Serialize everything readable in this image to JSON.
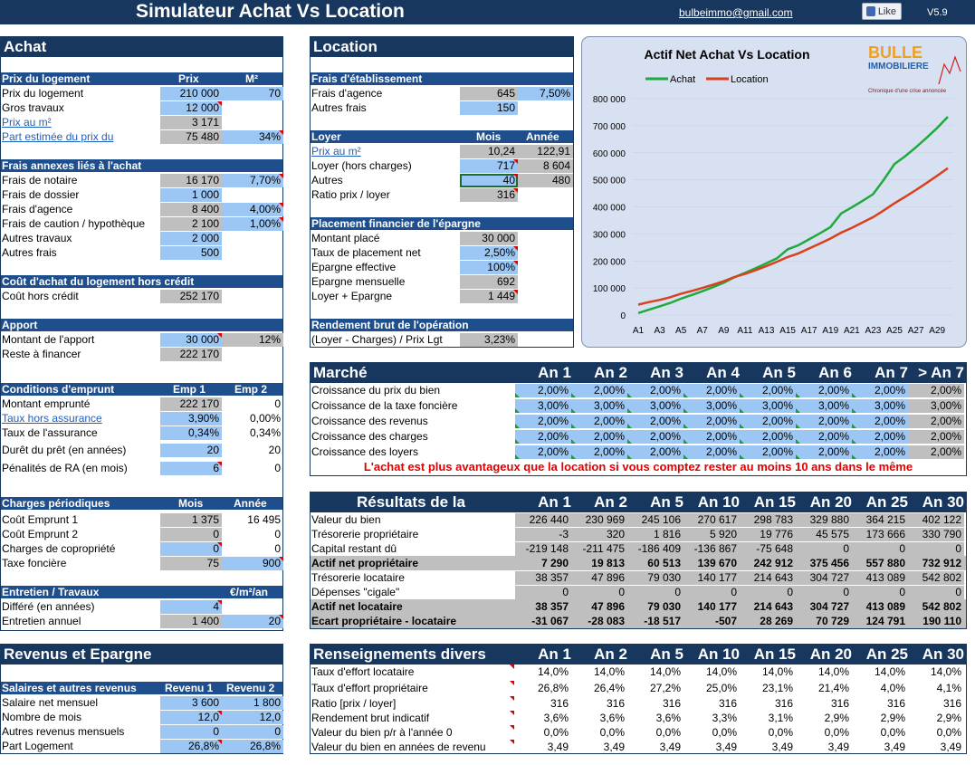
{
  "header": {
    "title": "Simulateur Achat Vs Location",
    "email": "bulbeimmo@gmail.com",
    "like": "Like",
    "version": "V5.9"
  },
  "achat": {
    "title": "Achat",
    "prix": {
      "h1": "Prix du logement",
      "h2": "Prix",
      "h3": "M²",
      "rows": [
        {
          "label": "Prix du logement",
          "v1": "210 000",
          "v2": "70"
        },
        {
          "label": "Gros travaux",
          "v1": "12 000",
          "v2": ""
        },
        {
          "label": "Prix au m²",
          "v1": "3 171",
          "v2": ""
        },
        {
          "label": "Part estimée du prix du",
          "v1": "75 480",
          "v2": "34%"
        }
      ]
    },
    "frais": {
      "h1": "Frais annexes liés à l'achat",
      "rows": [
        {
          "label": "Frais de notaire",
          "v1": "16 170",
          "v2": "7,70%"
        },
        {
          "label": "Frais de dossier",
          "v1": "1 000",
          "v2": ""
        },
        {
          "label": "Frais d'agence",
          "v1": "8 400",
          "v2": "4,00%"
        },
        {
          "label": "Frais de caution / hypothèque",
          "v1": "2 100",
          "v2": "1,00%"
        },
        {
          "label": "Autres travaux",
          "v1": "2 000",
          "v2": ""
        },
        {
          "label": "Autres frais",
          "v1": "500",
          "v2": ""
        }
      ]
    },
    "cout": {
      "h1": "Coût d'achat du logement hors crédit",
      "label": "Coût hors crédit",
      "v1": "252 170"
    },
    "apport": {
      "h1": "Apport",
      "rows": [
        {
          "label": "Montant de l'apport",
          "v1": "30 000",
          "v2": "12%"
        },
        {
          "label": "Reste à financer",
          "v1": "222 170",
          "v2": ""
        }
      ]
    },
    "emprunt": {
      "h1": "Conditions d'emprunt",
      "h2": "Emp 1",
      "h3": "Emp 2",
      "rows": [
        {
          "label": "Montant emprunté",
          "v1": "222 170",
          "v2": "0"
        },
        {
          "label": "Taux hors assurance",
          "v1": "3,90%",
          "v2": "0,00%"
        },
        {
          "label": "Taux de l'assurance",
          "v1": "0,34%",
          "v2": "0,34%"
        },
        {
          "label": "Durêt du prêt (en années)",
          "v1": "20",
          "v2": "20"
        },
        {
          "label": "Pénalités de RA (en mois)",
          "v1": "6",
          "v2": "0"
        }
      ]
    },
    "charges": {
      "h1": "Charges périodiques",
      "h2": "Mois",
      "h3": "Année",
      "rows": [
        {
          "label": "Coût Emprunt 1",
          "v1": "1 375",
          "v2": "16 495"
        },
        {
          "label": "Coût Emprunt 2",
          "v1": "0",
          "v2": "0"
        },
        {
          "label": "Charges de copropriété",
          "v1": "0",
          "v2": "0"
        },
        {
          "label": "Taxe foncière",
          "v1": "75",
          "v2": "900"
        }
      ]
    },
    "entretien": {
      "h1": "Entretien / Travaux",
      "h3": "€/m²/an",
      "rows": [
        {
          "label": "Différé (en années)",
          "v1": "4",
          "v2": ""
        },
        {
          "label": "Entretien annuel",
          "v1": "1 400",
          "v2": "20"
        }
      ]
    }
  },
  "revenus": {
    "title": "Revenus et Epargne",
    "h1": "Salaires et autres revenus",
    "h2": "Revenu 1",
    "h3": "Revenu 2",
    "rows": [
      {
        "label": "Salaire net mensuel",
        "v1": "3 600",
        "v2": "1 800"
      },
      {
        "label": "Nombre de mois",
        "v1": "12,0",
        "v2": "12,0"
      },
      {
        "label": "Autres revenus mensuels",
        "v1": "0",
        "v2": "0"
      },
      {
        "label": "Part Logement",
        "v1": "26,8%",
        "v2": "26,8%"
      }
    ]
  },
  "location": {
    "title": "Location",
    "etab": {
      "h1": "Frais d'établissement",
      "rows": [
        {
          "label": "Frais d'agence",
          "v1": "645",
          "v2": "7,50%"
        },
        {
          "label": "Autres frais",
          "v1": "150",
          "v2": ""
        }
      ]
    },
    "loyer": {
      "h1": "Loyer",
      "h2": "Mois",
      "h3": "Année",
      "rows": [
        {
          "label": "Prix au m²",
          "v1": "10,24",
          "v2": "122,91"
        },
        {
          "label": "Loyer (hors charges)",
          "v1": "717",
          "v2": "8 604"
        },
        {
          "label": "Autres",
          "v1": "40",
          "v2": "480"
        },
        {
          "label": "Ratio prix / loyer",
          "v1": "316",
          "v2": ""
        }
      ]
    },
    "placement": {
      "h1": "Placement financier de l'épargne",
      "rows": [
        {
          "label": "Montant placé",
          "v1": "30 000"
        },
        {
          "label": "Taux de placement net",
          "v1": "2,50%"
        },
        {
          "label": "Epargne effective",
          "v1": "100%"
        },
        {
          "label": "Epargne mensuelle",
          "v1": "692"
        },
        {
          "label": "Loyer + Epargne",
          "v1": "1 449"
        }
      ]
    },
    "rendement": {
      "h1": "Rendement brut de l'opération",
      "label": "(Loyer - Charges) / Prix Lgt",
      "v1": "3,23%"
    }
  },
  "marche": {
    "title": "Marché",
    "cols": [
      "An 1",
      "An 2",
      "An 3",
      "An 4",
      "An 5",
      "An 6",
      "An 7",
      "> An 7"
    ],
    "rows": [
      {
        "label": "Croissance du prix du bien",
        "vals": [
          "2,00%",
          "2,00%",
          "2,00%",
          "2,00%",
          "2,00%",
          "2,00%",
          "2,00%",
          "2,00%"
        ]
      },
      {
        "label": "Croissance de la taxe foncière",
        "vals": [
          "3,00%",
          "3,00%",
          "3,00%",
          "3,00%",
          "3,00%",
          "3,00%",
          "3,00%",
          "3,00%"
        ]
      },
      {
        "label": "Croissance des revenus",
        "vals": [
          "2,00%",
          "2,00%",
          "2,00%",
          "2,00%",
          "2,00%",
          "2,00%",
          "2,00%",
          "2,00%"
        ]
      },
      {
        "label": "Croissance des charges",
        "vals": [
          "2,00%",
          "2,00%",
          "2,00%",
          "2,00%",
          "2,00%",
          "2,00%",
          "2,00%",
          "2,00%"
        ]
      },
      {
        "label": "Croissance des loyers",
        "vals": [
          "2,00%",
          "2,00%",
          "2,00%",
          "2,00%",
          "2,00%",
          "2,00%",
          "2,00%",
          "2,00%"
        ]
      }
    ],
    "message": "L'achat est plus avantageux que la location si vous comptez rester au moins 10 ans dans le même"
  },
  "resultats": {
    "title": "Résultats de la",
    "cols": [
      "An 1",
      "An 2",
      "An 5",
      "An 10",
      "An 15",
      "An 20",
      "An 25",
      "An 30"
    ],
    "rows": [
      {
        "label": "Valeur du bien",
        "vals": [
          "226 440",
          "230 969",
          "245 106",
          "270 617",
          "298 783",
          "329 880",
          "364 215",
          "402 122"
        ],
        "style": "n"
      },
      {
        "label": "Trésorerie propriétaire",
        "vals": [
          "-3",
          "320",
          "1 816",
          "5 920",
          "19 776",
          "45 575",
          "173 666",
          "330 790"
        ],
        "style": "n"
      },
      {
        "label": "Capital restant dû",
        "vals": [
          "-219 148",
          "-211 475",
          "-186 409",
          "-136 867",
          "-75 648",
          "0",
          "0",
          "0"
        ],
        "style": "n"
      },
      {
        "label": "Actif net propriétaire",
        "vals": [
          "7 290",
          "19 813",
          "60 513",
          "139 670",
          "242 912",
          "375 456",
          "557 880",
          "732 912"
        ],
        "style": "t"
      },
      {
        "label": "Trésorerie locataire",
        "vals": [
          "38 357",
          "47 896",
          "79 030",
          "140 177",
          "214 643",
          "304 727",
          "413 089",
          "542 802"
        ],
        "style": "n"
      },
      {
        "label": "Dépenses \"cigale\"",
        "vals": [
          "0",
          "0",
          "0",
          "0",
          "0",
          "0",
          "0",
          "0"
        ],
        "style": "n"
      },
      {
        "label": "Actif net locataire",
        "vals": [
          "38 357",
          "47 896",
          "79 030",
          "140 177",
          "214 643",
          "304 727",
          "413 089",
          "542 802"
        ],
        "style": "t"
      },
      {
        "label": "Ecart propriétaire - locataire",
        "vals": [
          "-31 067",
          "-28 083",
          "-18 517",
          "-507",
          "28 269",
          "70 729",
          "124 791",
          "190 110"
        ],
        "style": "t"
      }
    ]
  },
  "divers": {
    "title": "Renseignements divers",
    "cols": [
      "An 1",
      "An 2",
      "An 5",
      "An 10",
      "An 15",
      "An 20",
      "An 25",
      "An 30"
    ],
    "rows": [
      {
        "label": "Taux d'effort locataire",
        "vals": [
          "14,0%",
          "14,0%",
          "14,0%",
          "14,0%",
          "14,0%",
          "14,0%",
          "14,0%",
          "14,0%"
        ]
      },
      {
        "label": "Taux d'effort propriétaire",
        "vals": [
          "26,8%",
          "26,4%",
          "27,2%",
          "25,0%",
          "23,1%",
          "21,4%",
          "4,0%",
          "4,1%"
        ]
      },
      {
        "label": "Ratio [prix / loyer]",
        "vals": [
          "316",
          "316",
          "316",
          "316",
          "316",
          "316",
          "316",
          "316"
        ]
      },
      {
        "label": "Rendement brut indicatif",
        "vals": [
          "3,6%",
          "3,6%",
          "3,6%",
          "3,3%",
          "3,1%",
          "2,9%",
          "2,9%",
          "2,9%"
        ]
      },
      {
        "label": "Valeur du bien p/r à l'année 0",
        "vals": [
          "0,0%",
          "0,0%",
          "0,0%",
          "0,0%",
          "0,0%",
          "0,0%",
          "0,0%",
          "0,0%"
        ]
      },
      {
        "label": "Valeur du bien en années de revenu",
        "vals": [
          "3,49",
          "3,49",
          "3,49",
          "3,49",
          "3,49",
          "3,49",
          "3,49",
          "3,49"
        ]
      }
    ]
  },
  "logo": {
    "line1": "BULLE",
    "line2": "IMMOBILIERE",
    "tagline": "Chronique d'une crise annoncée"
  },
  "chart_data": {
    "type": "line",
    "title": "Actif Net Achat Vs Location",
    "xlabel": "",
    "ylabel": "",
    "legend": "top-left",
    "ylim": [
      0,
      800000
    ],
    "yticks": [
      "800 000",
      "700 000",
      "600 000",
      "500 000",
      "400 000",
      "300 000",
      "200 000",
      "100 000",
      "0"
    ],
    "xticks": [
      "A1",
      "A3",
      "A5",
      "A7",
      "A9",
      "A11",
      "A13",
      "A15",
      "A17",
      "A19",
      "A21",
      "A23",
      "A25",
      "A27",
      "A29"
    ],
    "x": [
      "A1",
      "A2",
      "A3",
      "A4",
      "A5",
      "A6",
      "A7",
      "A8",
      "A9",
      "A10",
      "A11",
      "A12",
      "A13",
      "A14",
      "A15",
      "A16",
      "A17",
      "A18",
      "A19",
      "A20",
      "A21",
      "A22",
      "A23",
      "A24",
      "A25",
      "A26",
      "A27",
      "A28",
      "A29",
      "A30"
    ],
    "series": [
      {
        "name": "Achat",
        "color": "#1faa3c",
        "values": [
          7290,
          19813,
          32000,
          45000,
          60513,
          74000,
          88000,
          103000,
          119000,
          139670,
          156000,
          173000,
          191000,
          210000,
          242912,
          258000,
          280000,
          302000,
          325000,
          375456,
          398000,
          422000,
          447000,
          500000,
          557880,
          587000,
          620000,
          655000,
          692000,
          732912
        ]
      },
      {
        "name": "Location",
        "color": "#d9401e",
        "values": [
          38357,
          47896,
          56000,
          66000,
          79030,
          89000,
          100000,
          112000,
          125000,
          140177,
          152000,
          166000,
          181000,
          197000,
          214643,
          228000,
          246000,
          264000,
          283000,
          304727,
          322000,
          342000,
          362000,
          387000,
          413089,
          437000,
          462000,
          488000,
          515000,
          542802
        ]
      }
    ]
  }
}
